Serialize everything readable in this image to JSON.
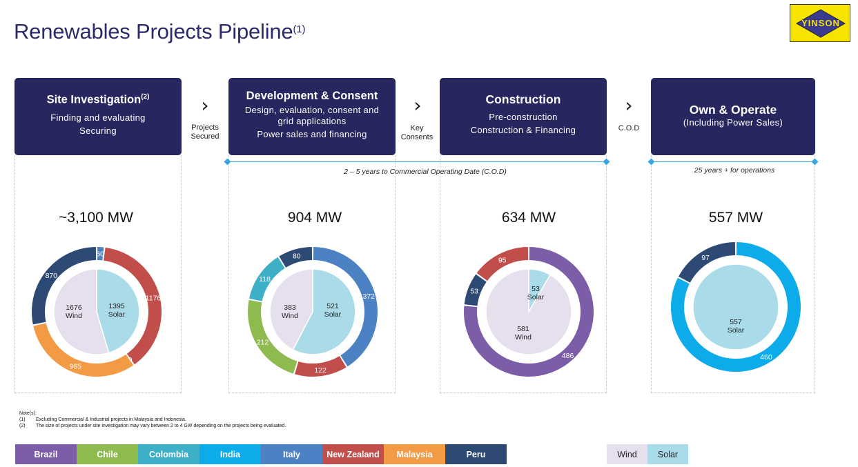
{
  "title": "Renewables Projects Pipeline",
  "title_note": "(1)",
  "logo_text": "YINSON",
  "stages": [
    {
      "title": "Site Investigation",
      "note": "(2)",
      "desc": [
        "Finding and evaluating",
        "Securing"
      ]
    },
    {
      "title": "Development & Consent",
      "note": "",
      "desc": [
        "Design, evaluation, consent and",
        "grid applications",
        "Power sales and financing"
      ]
    },
    {
      "title": "Construction",
      "note": "",
      "desc": [
        "Pre-construction",
        "Construction & Financing"
      ]
    },
    {
      "title": "Own & Operate",
      "note": "",
      "desc": [
        "(Including Power Sales)"
      ]
    }
  ],
  "transitions": [
    {
      "label_line1": "Projects",
      "label_line2": "Secured"
    },
    {
      "label_line1": "Key",
      "label_line2": "Consents"
    },
    {
      "label_line1": "C.O.D",
      "label_line2": ""
    }
  ],
  "timelines": [
    {
      "label": "2 – 5 years to Commercial Operating Date (C.O.D)"
    },
    {
      "label": "25 years + for operations"
    }
  ],
  "colors": {
    "Brazil": "#7b5ea7",
    "Chile": "#8fba4f",
    "Colombia": "#3db0c8",
    "India": "#0eabea",
    "Italy": "#4c82c3",
    "New Zealand": "#c24e4c",
    "Malaysia": "#f39a45",
    "Peru": "#2d4a75",
    "Wind": "#e5dfee",
    "Solar": "#a9dbe8"
  },
  "chart_data": [
    {
      "type": "donut",
      "total_label": "~3,100 MW",
      "outer": [
        {
          "country": "Italy",
          "value": 60,
          "label": "60"
        },
        {
          "country": "New Zealand",
          "value": 1176,
          "label": "1176"
        },
        {
          "country": "Chile",
          "value": 0,
          "label": "0"
        },
        {
          "country": "Malaysia",
          "value": 965,
          "label": "965"
        },
        {
          "country": "Peru",
          "value": 870,
          "label": "870"
        }
      ],
      "inner": [
        {
          "type": "Solar",
          "value": 1395,
          "label_value": "1395",
          "label_type": "Solar"
        },
        {
          "type": "Wind",
          "value": 1676,
          "label_value": "1676",
          "label_type": "Wind"
        }
      ]
    },
    {
      "type": "donut",
      "total_label": "904 MW",
      "outer": [
        {
          "country": "Italy",
          "value": 372,
          "label": "372"
        },
        {
          "country": "New Zealand",
          "value": 122,
          "label": "122"
        },
        {
          "country": "Chile",
          "value": 212,
          "label": "212"
        },
        {
          "country": "Colombia",
          "value": 118,
          "label": "118"
        },
        {
          "country": "Peru",
          "value": 80,
          "label": "80"
        }
      ],
      "inner": [
        {
          "type": "Solar",
          "value": 521,
          "label_value": "521",
          "label_type": "Solar"
        },
        {
          "type": "Wind",
          "value": 383,
          "label_value": "383",
          "label_type": "Wind"
        }
      ]
    },
    {
      "type": "donut",
      "total_label": "634 MW",
      "outer": [
        {
          "country": "Brazil",
          "value": 486,
          "label": "486"
        },
        {
          "country": "Peru",
          "value": 53,
          "label": "53"
        },
        {
          "country": "New Zealand",
          "value": 95,
          "label": "95"
        }
      ],
      "inner": [
        {
          "type": "Solar",
          "value": 53,
          "label_value": "53",
          "label_type": "Solar"
        },
        {
          "type": "Wind",
          "value": 581,
          "label_value": "581",
          "label_type": "Wind"
        }
      ]
    },
    {
      "type": "donut",
      "total_label": "557 MW",
      "outer": [
        {
          "country": "India",
          "value": 460,
          "label": "460"
        },
        {
          "country": "Peru",
          "value": 97,
          "label": "97"
        }
      ],
      "inner": [
        {
          "type": "Solar",
          "value": 557,
          "label_value": "557",
          "label_type": "Solar"
        }
      ]
    }
  ],
  "notes_title": "Note(s):",
  "notes": [
    {
      "num": "(1)",
      "text": "Excluding Commercial & Industrial projects in Malaysia and Indonesia."
    },
    {
      "num": "(2)",
      "text": "The size of projects under site investigation may vary between 2 to 4 GW depending on the projects being evaluated."
    }
  ],
  "legend_countries": [
    "Brazil",
    "Chile",
    "Colombia",
    "India",
    "Italy",
    "New Zealand",
    "Malaysia",
    "Peru"
  ],
  "legend_types": [
    "Wind",
    "Solar"
  ]
}
